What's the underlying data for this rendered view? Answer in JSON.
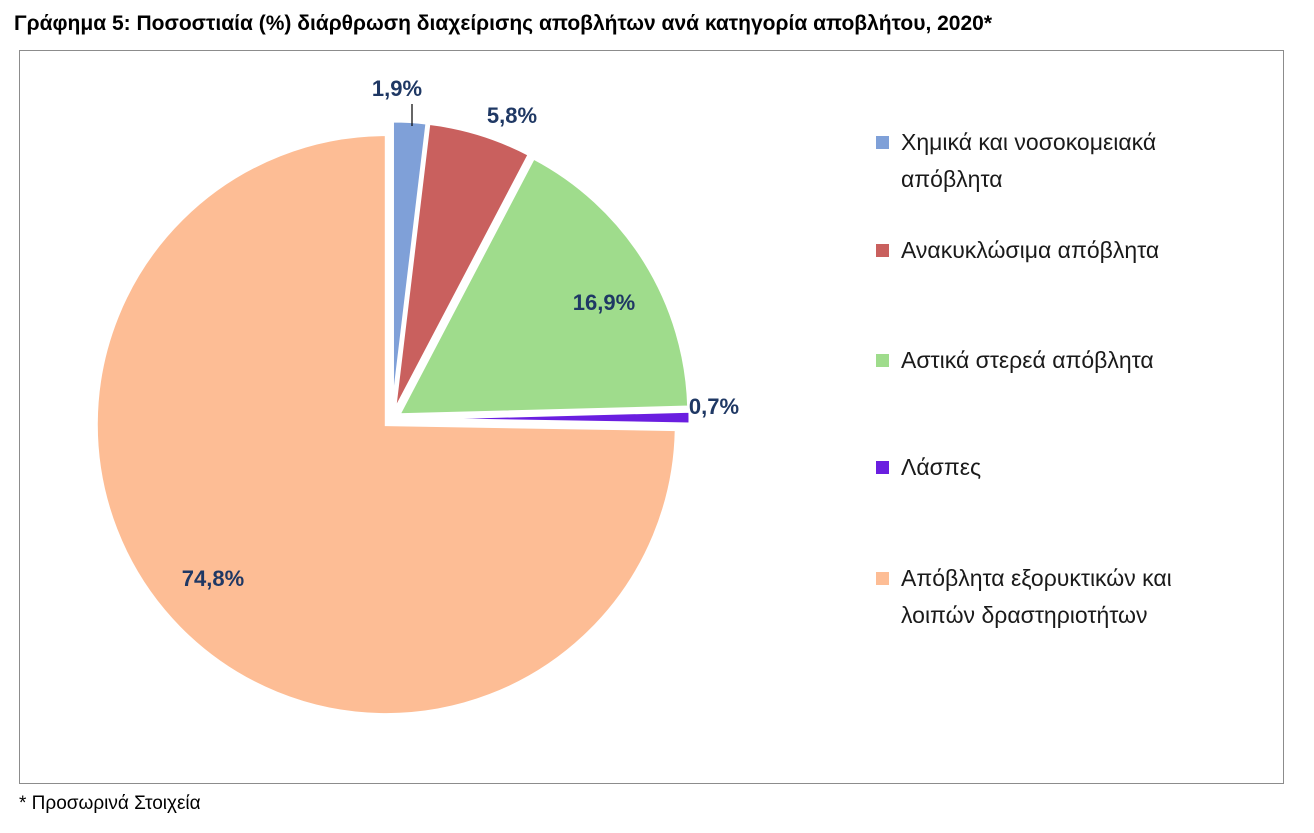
{
  "title": "Γράφημα 5: Ποσοστιαία (%) διάρθρωση διαχείρισης αποβλήτων ανά κατηγορία αποβλήτου, 2020*",
  "footnote": "* Προσωρινά Στοιχεία",
  "chart_data": {
    "type": "pie",
    "title": "Γράφημα 5: Ποσοστιαία (%) διάρθρωση διαχείρισης αποβλήτων ανά κατηγορία αποβλήτου, 2020*",
    "start_angle_deg": 0,
    "direction": "clockwise",
    "exploded": true,
    "legend_position": "right",
    "slices": [
      {
        "name": "Χημικά και νοσοκομειακά απόβλητα",
        "value": 1.9,
        "label": "1,9%",
        "color": "#7fa0d8"
      },
      {
        "name": "Ανακυκλώσιμα απόβλητα",
        "value": 5.8,
        "label": "5,8%",
        "color": "#c9605e"
      },
      {
        "name": "Αστικά στερεά απόβλητα",
        "value": 16.9,
        "label": "16,9%",
        "color": "#9fdc8c"
      },
      {
        "name": "Λάσπες",
        "value": 0.7,
        "label": "0,7%",
        "color": "#6a1ee0"
      },
      {
        "name": "Απόβλητα εξορυκτικών και λοιπών δραστηριοτήτων",
        "value": 74.8,
        "label": "74,8%",
        "color": "#fdbd95"
      }
    ]
  }
}
